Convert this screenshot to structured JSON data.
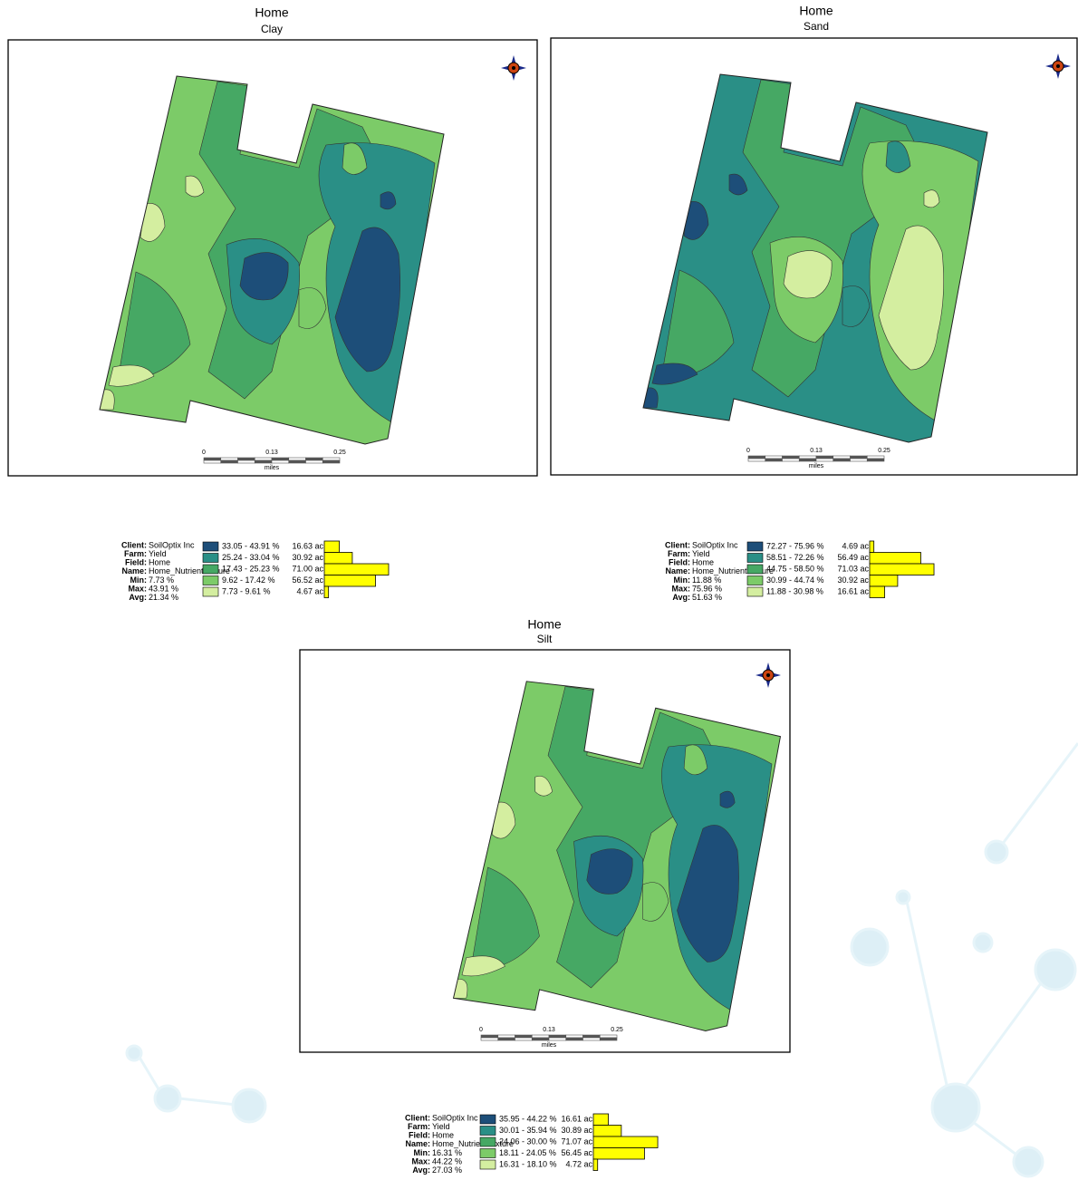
{
  "panels": [
    {
      "title": "Home",
      "subtitle": "Clay",
      "scale": {
        "ticks": [
          "0",
          "0.13",
          "0.25"
        ],
        "unit": "miles"
      },
      "info": [
        {
          "label": "Client:",
          "value": "SoilOptix Inc"
        },
        {
          "label": "Farm:",
          "value": "Yield"
        },
        {
          "label": "Field:",
          "value": "Home"
        },
        {
          "label": "Name:",
          "value": "Home_NutrientTexture"
        },
        {
          "label": "Min:",
          "value": "7.73 %"
        },
        {
          "label": "Max:",
          "value": "43.91 %"
        },
        {
          "label": "Avg:",
          "value": "21.34 %"
        }
      ],
      "legend": {
        "ranges": [
          "33.05 - 43.91 %",
          "25.24 - 33.04 %",
          "17.43 - 25.23 %",
          "9.62 - 17.42 %",
          "7.73 - 9.61 %"
        ],
        "colors": [
          "#1d4e79",
          "#2a8f86",
          "#46a864",
          "#7ccb68",
          "#d4eea0"
        ],
        "acres": [
          16.63,
          30.92,
          71.0,
          56.52,
          4.67
        ],
        "acres_labels": [
          "16.63 ac",
          "30.92 ac",
          "71.00 ac",
          "56.52 ac",
          "4.67 ac"
        ]
      }
    },
    {
      "title": "Home",
      "subtitle": "Sand",
      "scale": {
        "ticks": [
          "0",
          "0.13",
          "0.25"
        ],
        "unit": "miles"
      },
      "info": [
        {
          "label": "Client:",
          "value": "SoilOptix Inc"
        },
        {
          "label": "Farm:",
          "value": "Yield"
        },
        {
          "label": "Field:",
          "value": "Home"
        },
        {
          "label": "Name:",
          "value": "Home_NutrientTexture"
        },
        {
          "label": "Min:",
          "value": "11.88 %"
        },
        {
          "label": "Max:",
          "value": "75.96 %"
        },
        {
          "label": "Avg:",
          "value": "51.63 %"
        }
      ],
      "legend": {
        "ranges": [
          "72.27 - 75.96 %",
          "58.51 - 72.26 %",
          "44.75 - 58.50 %",
          "30.99 - 44.74 %",
          "11.88 - 30.98 %"
        ],
        "colors": [
          "#1d4e79",
          "#2a8f86",
          "#46a864",
          "#7ccb68",
          "#d4eea0"
        ],
        "acres": [
          4.69,
          56.49,
          71.03,
          30.92,
          16.61
        ],
        "acres_labels": [
          "4.69 ac",
          "56.49 ac",
          "71.03 ac",
          "30.92 ac",
          "16.61 ac"
        ]
      }
    },
    {
      "title": "Home",
      "subtitle": "Silt",
      "scale": {
        "ticks": [
          "0",
          "0.13",
          "0.25"
        ],
        "unit": "miles"
      },
      "info": [
        {
          "label": "Client:",
          "value": "SoilOptix Inc"
        },
        {
          "label": "Farm:",
          "value": "Yield"
        },
        {
          "label": "Field:",
          "value": "Home"
        },
        {
          "label": "Name:",
          "value": "Home_NutrientTexture"
        },
        {
          "label": "Min:",
          "value": "16.31 %"
        },
        {
          "label": "Max:",
          "value": "44.22 %"
        },
        {
          "label": "Avg:",
          "value": "27.03 %"
        }
      ],
      "legend": {
        "ranges": [
          "35.95 - 44.22 %",
          "30.01 - 35.94 %",
          "24.06 - 30.00 %",
          "18.11 - 24.05 %",
          "16.31 - 18.10 %"
        ],
        "colors": [
          "#1d4e79",
          "#2a8f86",
          "#46a864",
          "#7ccb68",
          "#d4eea0"
        ],
        "acres": [
          16.61,
          30.89,
          71.07,
          56.45,
          4.72
        ],
        "acres_labels": [
          "16.61 ac",
          "30.89 ac",
          "71.07 ac",
          "56.45 ac",
          "4.72 ac"
        ]
      }
    }
  ]
}
